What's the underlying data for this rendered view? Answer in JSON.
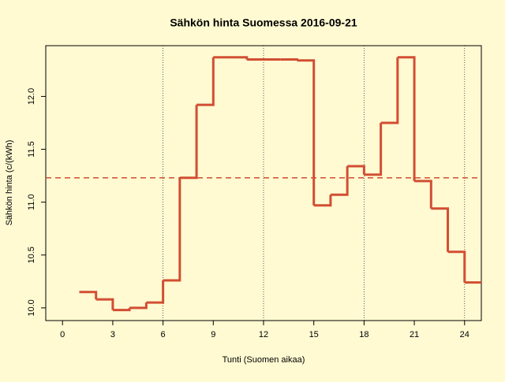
{
  "chart_data": {
    "type": "step",
    "title": "Sähkön hinta Suomessa 2016-09-21",
    "xlabel": "Tunti (Suomen aikaa)",
    "ylabel": "Sähkön hinta (c/(kWh)",
    "x": [
      1,
      2,
      3,
      4,
      5,
      6,
      7,
      8,
      9,
      10,
      11,
      12,
      13,
      14,
      15,
      16,
      17,
      18,
      19,
      20,
      21,
      22,
      23,
      24
    ],
    "values": [
      10.15,
      10.08,
      9.98,
      10.0,
      10.05,
      10.26,
      11.23,
      11.92,
      12.37,
      12.37,
      12.35,
      12.35,
      12.35,
      12.34,
      10.97,
      11.07,
      11.34,
      11.26,
      11.75,
      12.37,
      11.2,
      10.94,
      10.53,
      10.24
    ],
    "color": "#d24e33",
    "mean": 11.23,
    "xlim": [
      -1,
      25
    ],
    "ylim": [
      9.88,
      12.48
    ],
    "xticks": [
      0,
      3,
      6,
      9,
      12,
      15,
      18,
      21,
      24
    ],
    "yticks": [
      {
        "value": 10,
        "label": "10.0"
      },
      10.5,
      {
        "value": 11,
        "label": "11.0"
      },
      11.5,
      {
        "value": 12,
        "label": "12.0"
      }
    ],
    "vlines": [
      6,
      12,
      18,
      24
    ]
  }
}
